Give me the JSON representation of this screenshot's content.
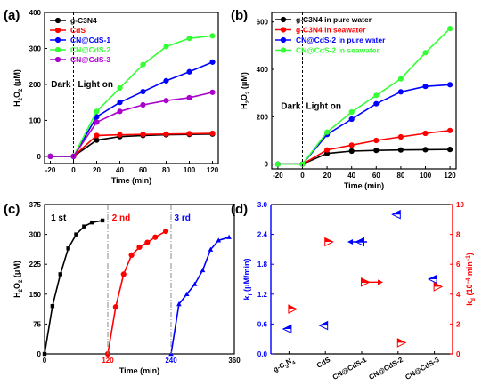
{
  "chart_data": [
    {
      "panel": "(a)",
      "type": "line",
      "xlabel": "Time (min)",
      "ylabel": "H2O2 (μM)",
      "xlim": [
        -25,
        125
      ],
      "ylim": [
        -20,
        400
      ],
      "xticks": [
        -20,
        0,
        20,
        40,
        60,
        80,
        100,
        120
      ],
      "yticks": [
        0,
        100,
        200,
        300,
        400
      ],
      "annotations": [
        "Dark",
        "Light on"
      ],
      "x": [
        -20,
        0,
        20,
        40,
        60,
        80,
        100,
        120
      ],
      "legend_position": "top-left",
      "series": [
        {
          "name": "g-C3N4",
          "color": "#000000",
          "marker": "circle",
          "values": [
            0,
            0,
            45,
            55,
            58,
            60,
            61,
            62
          ]
        },
        {
          "name": "CdS",
          "color": "#ff0000",
          "marker": "circle",
          "values": [
            0,
            0,
            58,
            60,
            61,
            62,
            63,
            64
          ]
        },
        {
          "name": "CN@CdS-1",
          "color": "#0000ff",
          "marker": "circle",
          "values": [
            0,
            0,
            110,
            150,
            180,
            210,
            235,
            262
          ]
        },
        {
          "name": "CN@CdS-2",
          "color": "#33ff33",
          "marker": "circle",
          "values": [
            0,
            0,
            125,
            190,
            255,
            305,
            328,
            335
          ]
        },
        {
          "name": "CN@CdS-3",
          "color": "#aa00cc",
          "marker": "circle",
          "values": [
            0,
            0,
            95,
            125,
            143,
            155,
            163,
            178
          ]
        }
      ]
    },
    {
      "panel": "(b)",
      "type": "line",
      "xlabel": "Time (min)",
      "ylabel": "H2O2 (μM)",
      "xlim": [
        -25,
        125
      ],
      "ylim": [
        -20,
        640
      ],
      "xticks": [
        -20,
        0,
        20,
        40,
        60,
        80,
        100,
        120
      ],
      "yticks": [
        0,
        200,
        400,
        600
      ],
      "annotations": [
        "Dark",
        "Light on"
      ],
      "x": [
        -20,
        0,
        20,
        40,
        60,
        80,
        100,
        120
      ],
      "legend_position": "top-left",
      "series": [
        {
          "name": "g-C3N4 in pure water",
          "color": "#000000",
          "marker": "circle",
          "values": [
            0,
            0,
            45,
            55,
            58,
            60,
            61,
            62
          ]
        },
        {
          "name": "g-C3N4 in seawater",
          "color": "#ff0000",
          "marker": "circle",
          "values": [
            0,
            0,
            60,
            80,
            100,
            115,
            130,
            142
          ]
        },
        {
          "name": "CN@CdS-2 in pure water",
          "color": "#0000ff",
          "marker": "circle",
          "values": [
            0,
            0,
            125,
            190,
            255,
            305,
            328,
            335
          ]
        },
        {
          "name": "CN@CdS-2 in seawater",
          "color": "#33ff33",
          "marker": "circle",
          "values": [
            0,
            0,
            135,
            220,
            290,
            360,
            470,
            572
          ]
        }
      ]
    },
    {
      "panel": "(c)",
      "type": "line",
      "xlabel": "Time (min)",
      "ylabel": "H2O2 (μM)",
      "xlim": [
        0,
        360
      ],
      "ylim": [
        0,
        375
      ],
      "xticks": [
        0,
        120,
        240,
        360
      ],
      "yticks": [
        0,
        75,
        150,
        225,
        300,
        375
      ],
      "annotations": [
        "1 st",
        "2 nd",
        "3 rd"
      ],
      "series": [
        {
          "name": "1 st",
          "color": "#000000",
          "marker": "square",
          "x": [
            0,
            15,
            30,
            45,
            60,
            75,
            90,
            110
          ],
          "values": [
            0,
            120,
            200,
            265,
            300,
            320,
            330,
            335
          ]
        },
        {
          "name": "2 nd",
          "color": "#ff0000",
          "marker": "circle",
          "x": [
            120,
            135,
            150,
            165,
            180,
            195,
            210,
            230
          ],
          "values": [
            0,
            118,
            200,
            248,
            268,
            280,
            293,
            308
          ]
        },
        {
          "name": "3 rd",
          "color": "#0000ff",
          "marker": "triangle",
          "x": [
            240,
            255,
            270,
            285,
            300,
            315,
            330,
            350
          ],
          "values": [
            0,
            125,
            150,
            175,
            210,
            262,
            285,
            293
          ]
        }
      ]
    },
    {
      "panel": "(d)",
      "type": "scatter",
      "categories": [
        "g-C3N4",
        "CdS",
        "CN@CdS-1",
        "CN@CdS-2",
        "CN@CdS-3"
      ],
      "ylabel_left": "kf (μM/min)",
      "ylabel_right": "kd (10⁻⁴ min⁻¹)",
      "ylim_left": [
        0,
        3.0
      ],
      "ylim_right": [
        0,
        10
      ],
      "yticks_left": [
        "0.0",
        "0.6",
        "1.2",
        "1.8",
        "2.4",
        "3.0"
      ],
      "yticks_right": [
        "0",
        "2",
        "4",
        "6",
        "8",
        "10"
      ],
      "kf_color": "#0000ff",
      "kd_color": "#ff0000",
      "series": [
        {
          "name": "kf",
          "axis": "left",
          "values": [
            0.5,
            0.57,
            2.25,
            2.8,
            1.5
          ]
        },
        {
          "name": "kd",
          "axis": "right",
          "values": [
            3.0,
            7.5,
            4.8,
            0.75,
            4.5
          ]
        }
      ]
    }
  ]
}
